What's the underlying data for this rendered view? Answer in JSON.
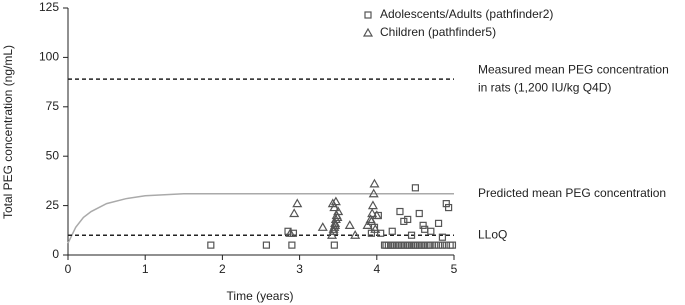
{
  "chart_data": {
    "type": "scatter",
    "xlabel": "Time (years)",
    "ylabel": "Total PEG concentration (ng/mL)",
    "xlim": [
      0,
      5
    ],
    "xticks": [
      0,
      1,
      2,
      3,
      4,
      5
    ],
    "ylim": [
      0,
      125
    ],
    "yticks": [
      0,
      25,
      50,
      75,
      100,
      125
    ],
    "grid": false,
    "series": [
      {
        "name": "Adolescents/Adults (pathfinder2)",
        "marker": "square",
        "color": "#555555",
        "x": [
          1.85,
          2.57,
          2.85,
          2.9,
          2.92,
          3.45,
          3.93,
          3.97,
          4.02,
          4.05,
          4.1,
          4.12,
          4.15,
          4.18,
          4.2,
          4.22,
          4.25,
          4.28,
          4.3,
          4.32,
          4.35,
          4.38,
          4.4,
          4.42,
          4.45,
          4.48,
          4.5,
          4.52,
          4.55,
          4.58,
          4.6,
          4.62,
          4.65,
          4.68,
          4.7,
          4.75,
          4.8,
          4.85,
          4.9,
          4.95,
          4.98,
          4.3,
          4.4,
          4.5,
          4.6,
          4.7,
          4.8,
          4.9,
          4.45,
          4.55,
          4.62,
          4.85,
          4.93,
          4.2,
          4.35
        ],
        "values": [
          5,
          5,
          12,
          5,
          11,
          5,
          11,
          14,
          20,
          11,
          5,
          5,
          5,
          5,
          5,
          5,
          5,
          5,
          5,
          5,
          5,
          5,
          5,
          5,
          5,
          5,
          5,
          5,
          5,
          5,
          5,
          5,
          5,
          5,
          5,
          5,
          5,
          5,
          5,
          5,
          5,
          22,
          18,
          34,
          15,
          12,
          16,
          26,
          10,
          21,
          13,
          9,
          24,
          12,
          17
        ]
      },
      {
        "name": "Children (pathfinder5)",
        "marker": "triangle",
        "color": "#555555",
        "x": [
          2.88,
          2.93,
          2.97,
          3.3,
          3.42,
          3.44,
          3.45,
          3.46,
          3.47,
          3.48,
          3.5,
          3.45,
          3.43,
          3.47,
          3.49,
          3.46,
          3.44,
          3.65,
          3.72,
          3.88,
          3.92,
          3.94,
          3.95,
          3.96,
          3.97,
          3.98,
          4.0,
          3.93
        ],
        "values": [
          11,
          21,
          26,
          14,
          10,
          12,
          14,
          16,
          18,
          20,
          22,
          24,
          26,
          27,
          19,
          15,
          13,
          15,
          10,
          15,
          18,
          21,
          25,
          31,
          36,
          13,
          20,
          17
        ]
      }
    ],
    "curve": {
      "label": "Predicted mean PEG concentration",
      "color": "#aaaaaa",
      "x": [
        0,
        0.1,
        0.2,
        0.3,
        0.5,
        0.75,
        1,
        1.5,
        2,
        3,
        4,
        5
      ],
      "values": [
        6,
        14,
        19,
        22,
        26,
        28.5,
        30,
        31,
        31,
        31,
        31,
        31
      ]
    },
    "reference_lines": [
      {
        "value": 89,
        "label_lines": [
          "Measured mean PEG concentration",
          "in rats (1,200 IU/kg Q4D)"
        ]
      },
      {
        "value": 10,
        "label_lines": [
          "LLoQ"
        ]
      }
    ]
  }
}
